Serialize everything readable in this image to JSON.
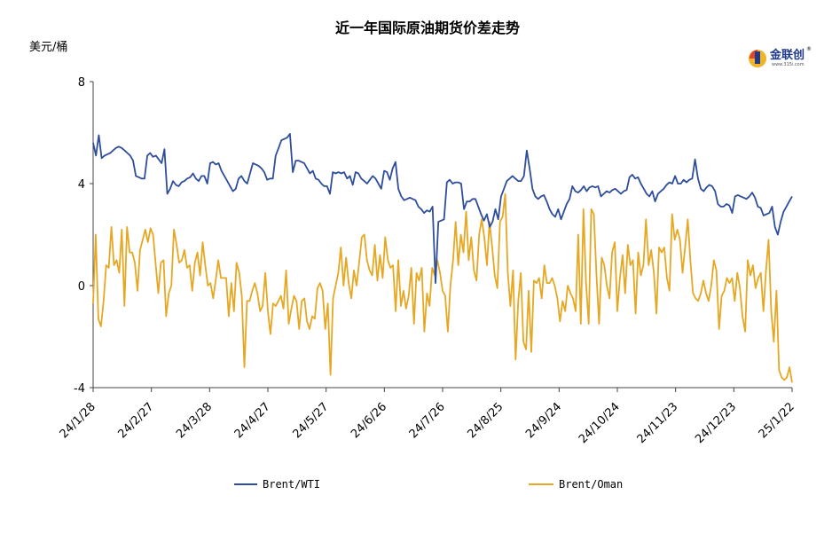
{
  "logo": {
    "name": "金联创",
    "site": "www.315i.com",
    "registered": "®",
    "colors": [
      "#1f3a8a",
      "#e0462b",
      "#f0b429"
    ]
  },
  "chart_data": {
    "type": "line",
    "title": "近一年国际原油期货价差走势",
    "ylabel": "美元/桶",
    "xlabel": "",
    "ylim": [
      -4,
      8
    ],
    "yticks": [
      "8",
      "4",
      "0",
      "-4"
    ],
    "xticks": [
      "24/1/28",
      "24/2/27",
      "24/3/28",
      "24/4/27",
      "24/5/27",
      "24/6/26",
      "24/7/26",
      "24/8/25",
      "24/9/24",
      "24/10/24",
      "24/11/23",
      "24/12/23",
      "25/1/22"
    ],
    "legend_position": "bottom",
    "grid": false,
    "series": [
      {
        "name": "Brent/WTI",
        "color": "#2e4d9b",
        "values": [
          5.6,
          5.1,
          5.9,
          5.0,
          5.1,
          5.15,
          5.2,
          5.3,
          5.4,
          5.45,
          5.4,
          5.3,
          5.2,
          5.1,
          4.9,
          4.3,
          4.25,
          4.2,
          4.2,
          5.1,
          5.2,
          5.05,
          5.1,
          4.95,
          4.8,
          5.35,
          3.6,
          3.8,
          4.1,
          3.95,
          3.9,
          4.05,
          4.1,
          4.2,
          4.25,
          4.4,
          4.2,
          4.1,
          4.3,
          4.3,
          4.0,
          4.8,
          4.85,
          4.75,
          4.8,
          4.5,
          4.3,
          4.1,
          3.9,
          3.7,
          3.8,
          4.2,
          4.3,
          4.1,
          4.0,
          4.4,
          4.8,
          4.75,
          4.7,
          4.6,
          4.45,
          4.15,
          4.2,
          4.2,
          5.1,
          5.4,
          5.7,
          5.75,
          5.8,
          5.95,
          4.45,
          4.9,
          4.9,
          4.85,
          4.8,
          4.6,
          4.4,
          4.5,
          4.2,
          4.15,
          4.0,
          3.9,
          3.9,
          3.6,
          4.45,
          4.4,
          4.45,
          4.4,
          4.45,
          4.2,
          4.3,
          3.95,
          4.45,
          4.4,
          4.2,
          4.1,
          4.0,
          4.15,
          4.3,
          4.2,
          4.0,
          3.8,
          4.5,
          4.45,
          4.15,
          4.6,
          4.85,
          3.8,
          3.5,
          3.35,
          3.4,
          3.45,
          3.4,
          3.35,
          3.1,
          3.0,
          2.85,
          2.95,
          2.9,
          3.1,
          0.1,
          2.5,
          2.55,
          2.6,
          4.05,
          4.15,
          4.0,
          4.05,
          4.05,
          4.0,
          3.0,
          3.3,
          3.3,
          3.4,
          3.4,
          3.1,
          2.8,
          2.55,
          2.8,
          2.3,
          2.5,
          3.0,
          2.6,
          3.5,
          3.8,
          4.1,
          4.2,
          4.3,
          4.2,
          4.1,
          4.1,
          4.3,
          5.3,
          4.6,
          3.8,
          3.5,
          3.4,
          3.5,
          3.55,
          3.3,
          3.0,
          2.8,
          2.7,
          3.0,
          2.6,
          2.9,
          3.2,
          3.4,
          3.9,
          3.7,
          3.65,
          3.75,
          3.9,
          3.7,
          3.85,
          3.9,
          3.85,
          3.9,
          3.5,
          3.6,
          3.7,
          3.65,
          3.75,
          3.8,
          3.7,
          3.6,
          3.7,
          3.75,
          4.25,
          4.35,
          4.2,
          4.25,
          4.0,
          3.8,
          3.6,
          3.5,
          3.7,
          3.3,
          3.6,
          3.7,
          3.8,
          3.95,
          4.05,
          4.0,
          4.3,
          4.0,
          4.0,
          4.15,
          4.05,
          4.15,
          4.2,
          4.95,
          4.2,
          3.8,
          3.7,
          3.85,
          3.95,
          3.9,
          3.7,
          3.2,
          3.1,
          3.1,
          3.2,
          3.15,
          2.85,
          3.5,
          3.55,
          3.5,
          3.45,
          3.4,
          3.5,
          3.65,
          3.45,
          3.1,
          3.05,
          2.75,
          2.8,
          2.85,
          3.1,
          2.3,
          2.0,
          2.5,
          2.9,
          3.1,
          3.3,
          3.5
        ]
      },
      {
        "name": "Brent/Oman",
        "color": "#e6a823",
        "values": [
          -0.7,
          2.0,
          -1.3,
          -1.6,
          -0.6,
          0.8,
          0.7,
          2.3,
          0.8,
          1.0,
          0.5,
          2.2,
          -0.8,
          2.3,
          1.3,
          1.3,
          0.9,
          -0.2,
          1.4,
          1.8,
          2.2,
          1.7,
          2.25,
          2.0,
          0.8,
          -0.3,
          0.9,
          1.0,
          -1.2,
          -0.3,
          0.0,
          2.2,
          1.6,
          0.9,
          1.0,
          1.4,
          0.7,
          0.8,
          -0.2,
          0.9,
          1.3,
          0.4,
          1.7,
          0.8,
          0.0,
          0.1,
          -0.5,
          0.2,
          1.0,
          0.3,
          0.3,
          0.3,
          -1.2,
          0.1,
          -1.0,
          0.9,
          0.5,
          -0.4,
          -3.2,
          -0.6,
          -0.6,
          -0.2,
          0.1,
          -0.3,
          -1.0,
          -0.8,
          0.5,
          -1.0,
          -1.9,
          -0.7,
          -0.8,
          -0.6,
          -0.4,
          -0.9,
          0.6,
          -1.5,
          -0.9,
          -0.4,
          -0.6,
          -1.7,
          -0.6,
          -0.5,
          -1.4,
          -1.7,
          -1.2,
          -1.3,
          -0.1,
          0.1,
          -0.2,
          -1.7,
          -0.7,
          -3.5,
          -0.5,
          0.0,
          0.5,
          1.5,
          0.0,
          1.1,
          0.1,
          -0.5,
          0.6,
          0.0,
          0.9,
          1.9,
          2.0,
          1.0,
          0.6,
          0.4,
          1.6,
          0.2,
          1.2,
          0.3,
          1.9,
          1.0,
          0.7,
          0.8,
          -1.0,
          1.0,
          -0.8,
          -0.2,
          -0.9,
          -0.4,
          0.7,
          -1.5,
          0.5,
          0.2,
          0.7,
          -1.8,
          -0.3,
          -0.8,
          0.7,
          0.4,
          1.0,
          0.5,
          -0.2,
          -0.4,
          -1.8,
          0.0,
          1.0,
          2.5,
          0.8,
          2.0,
          1.3,
          2.9,
          1.0,
          1.9,
          0.6,
          0.2,
          2.0,
          2.6,
          1.9,
          0.8,
          2.5,
          1.5,
          0.4,
          -0.1,
          2.5,
          2.7,
          3.6,
          0.5,
          -0.8,
          0.6,
          -2.9,
          -0.6,
          0.5,
          -2.2,
          -2.5,
          -0.2,
          -2.6,
          0.2,
          0.1,
          0.3,
          -0.5,
          0.8,
          0.1,
          0.1,
          0.3,
          0.0,
          -0.5,
          -1.4,
          -0.6,
          -1.0,
          0.0,
          -0.3,
          -0.5,
          -1.0,
          2.0,
          -1.5,
          3.0,
          0.1,
          -1.5,
          3.0,
          2.8,
          0.4,
          -1.5,
          1.1,
          0.8,
          0.0,
          -0.5,
          1.3,
          1.7,
          -1.0,
          0.3,
          1.2,
          -0.3,
          1.6,
          0.8,
          1.0,
          -1.1,
          1.3,
          0.4,
          0.8,
          2.6,
          0.8,
          1.4,
          0.5,
          -1.1,
          1.5,
          1.3,
          1.5,
          0.3,
          -0.2,
          2.8,
          1.8,
          2.2,
          1.8,
          0.5,
          1.5,
          2.6,
          1.0,
          -0.3,
          -0.5,
          -0.6,
          -0.3,
          0.2,
          -0.3,
          -0.6,
          0.0,
          1.0,
          0.6,
          -1.7,
          -0.4,
          -0.2,
          0.3,
          0.1,
          0.3,
          -0.6,
          0.5,
          -0.1,
          -1.2,
          -1.8,
          1.0,
          0.4,
          0.8,
          -0.1,
          0.3,
          0.5,
          -1.0,
          0.6,
          1.8,
          -1.0,
          -2.2,
          -0.2,
          -3.3,
          -3.6,
          -3.7,
          -3.6,
          -3.2,
          -3.8
        ]
      }
    ]
  }
}
